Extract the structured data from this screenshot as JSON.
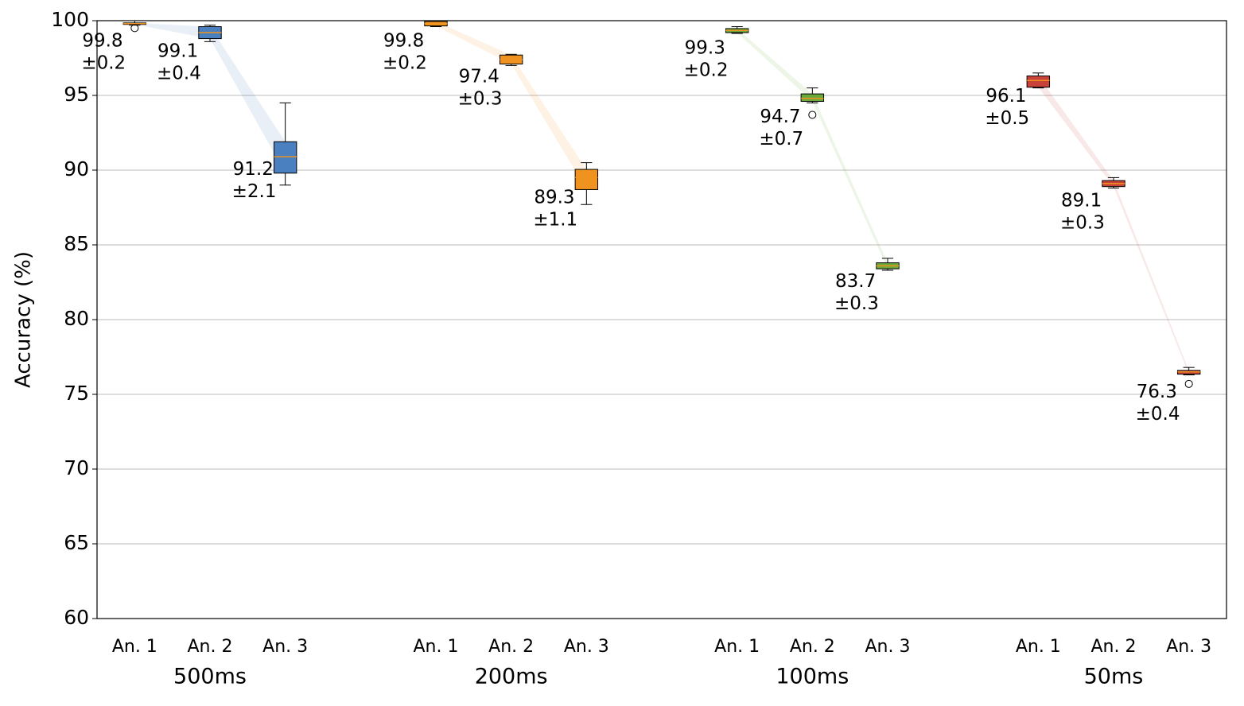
{
  "chart_data": {
    "type": "box",
    "ylabel": "Accuracy (%)",
    "ylim": [
      60,
      100
    ],
    "yticks": [
      60,
      65,
      70,
      75,
      80,
      85,
      90,
      95,
      100
    ],
    "grid": true,
    "median_color": "#f0921f",
    "groups": [
      {
        "name": "500ms",
        "color": "#4a7fc0",
        "boxes": [
          {
            "category": "An. 1",
            "whislo": 99.7,
            "q1": 99.75,
            "med": 99.8,
            "q3": 99.85,
            "whishi": 100,
            "fliers": [
              99.5
            ],
            "mean": 99.8,
            "std": {
              "value": 0.2,
              "label": "±0.2"
            }
          },
          {
            "category": "An. 2",
            "whislo": 98.6,
            "q1": 98.8,
            "med": 99.2,
            "q3": 99.6,
            "whishi": 99.7,
            "fliers": [],
            "mean": 99.1,
            "std": {
              "value": 0.4,
              "label": "±0.4"
            }
          },
          {
            "category": "An. 3",
            "whislo": 89.0,
            "q1": 89.8,
            "med": 90.9,
            "q3": 91.9,
            "whishi": 94.5,
            "fliers": [],
            "mean": 91.2,
            "std": {
              "value": 2.1,
              "label": "±2.1"
            }
          }
        ]
      },
      {
        "name": "200ms",
        "color": "#f0921f",
        "boxes": [
          {
            "category": "An. 1",
            "whislo": 99.6,
            "q1": 99.65,
            "med": 99.8,
            "q3": 99.95,
            "whishi": 100,
            "fliers": [],
            "mean": 99.8,
            "std": {
              "value": 0.2,
              "label": "±0.2"
            }
          },
          {
            "category": "An. 2",
            "whislo": 97.0,
            "q1": 97.1,
            "med": 97.4,
            "q3": 97.7,
            "whishi": 97.75,
            "fliers": [],
            "mean": 97.4,
            "std": {
              "value": 0.3,
              "label": "±0.3"
            }
          },
          {
            "category": "An. 3",
            "whislo": 87.7,
            "q1": 88.7,
            "med": 89.5,
            "q3": 90.05,
            "whishi": 90.5,
            "fliers": [],
            "mean": 89.3,
            "std": {
              "value": 1.1,
              "label": "±1.1"
            }
          }
        ]
      },
      {
        "name": "100ms",
        "color": "#6aaa3a",
        "boxes": [
          {
            "category": "An. 1",
            "whislo": 99.15,
            "q1": 99.2,
            "med": 99.35,
            "q3": 99.47,
            "whishi": 99.6,
            "fliers": [],
            "mean": 99.3,
            "std": {
              "value": 0.2,
              "label": "±0.2"
            }
          },
          {
            "category": "An. 2",
            "whislo": 94.5,
            "q1": 94.6,
            "med": 94.8,
            "q3": 95.1,
            "whishi": 95.5,
            "fliers": [
              93.7
            ],
            "mean": 94.7,
            "std": {
              "value": 0.7,
              "label": "±0.7"
            }
          },
          {
            "category": "An. 3",
            "whislo": 83.3,
            "q1": 83.4,
            "med": 83.6,
            "q3": 83.8,
            "whishi": 84.1,
            "fliers": [],
            "mean": 83.7,
            "std": {
              "value": 0.3,
              "label": "±0.3"
            }
          }
        ]
      },
      {
        "name": "50ms",
        "color": "#c8423a",
        "boxes": [
          {
            "category": "An. 1",
            "whislo": 95.5,
            "q1": 95.55,
            "med": 96.0,
            "q3": 96.3,
            "whishi": 96.5,
            "fliers": [],
            "mean": 96.1,
            "std": {
              "value": 0.5,
              "label": "±0.5"
            }
          },
          {
            "category": "An. 2",
            "whislo": 88.8,
            "q1": 88.9,
            "med": 89.1,
            "q3": 89.3,
            "whishi": 89.5,
            "fliers": [],
            "mean": 89.1,
            "std": {
              "value": 0.3,
              "label": "±0.3"
            }
          },
          {
            "category": "An. 3",
            "whislo": 76.3,
            "q1": 76.35,
            "med": 76.5,
            "q3": 76.6,
            "whishi": 76.8,
            "fliers": [
              75.7
            ],
            "mean": 76.3,
            "std": {
              "value": 0.4,
              "label": "±0.4"
            }
          }
        ]
      }
    ]
  }
}
